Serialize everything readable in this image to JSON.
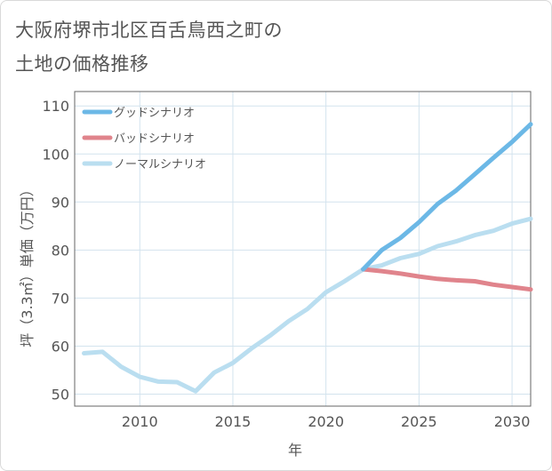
{
  "chart_data": {
    "type": "line",
    "title_lines": [
      "大阪府堺市北区百舌鳥西之町の",
      "土地の価格推移"
    ],
    "xlabel": "年",
    "ylabel": "坪（3.3㎡）単価（万円）",
    "xlim": [
      2006.5,
      2031
    ],
    "ylim": [
      47.5,
      113
    ],
    "xticks": [
      2010,
      2015,
      2020,
      2025,
      2030
    ],
    "yticks": [
      50,
      60,
      70,
      80,
      90,
      100,
      110
    ],
    "grid": true,
    "legend_position": "top-left",
    "series": [
      {
        "name": "グッドシナリオ",
        "color": "#6cb8e6",
        "x": [
          2022,
          2023,
          2024,
          2025,
          2026,
          2027,
          2028,
          2029,
          2030,
          2031
        ],
        "y": [
          76,
          80,
          82.5,
          85.8,
          89.6,
          92.4,
          95.8,
          99.2,
          102.5,
          106.2
        ]
      },
      {
        "name": "バッドシナリオ",
        "color": "#e0848c",
        "x": [
          2022,
          2023,
          2024,
          2025,
          2026,
          2027,
          2028,
          2029,
          2030,
          2031
        ],
        "y": [
          76,
          75.6,
          75.1,
          74.5,
          74,
          73.7,
          73.5,
          72.8,
          72.3,
          71.8
        ]
      },
      {
        "name": "ノーマルシナリオ",
        "color": "#badef0",
        "x": [
          2007,
          2008,
          2009,
          2010,
          2011,
          2012,
          2013,
          2014,
          2015,
          2016,
          2017,
          2018,
          2019,
          2020,
          2021,
          2022,
          2023,
          2024,
          2025,
          2026,
          2027,
          2028,
          2029,
          2030,
          2031
        ],
        "y": [
          58.5,
          58.8,
          55.7,
          53.6,
          52.6,
          52.5,
          50.6,
          54.5,
          56.5,
          59.5,
          62.2,
          65.2,
          67.7,
          71.2,
          73.5,
          76,
          76.8,
          78.3,
          79.2,
          80.8,
          81.8,
          83.1,
          84,
          85.5,
          86.5
        ]
      }
    ]
  }
}
